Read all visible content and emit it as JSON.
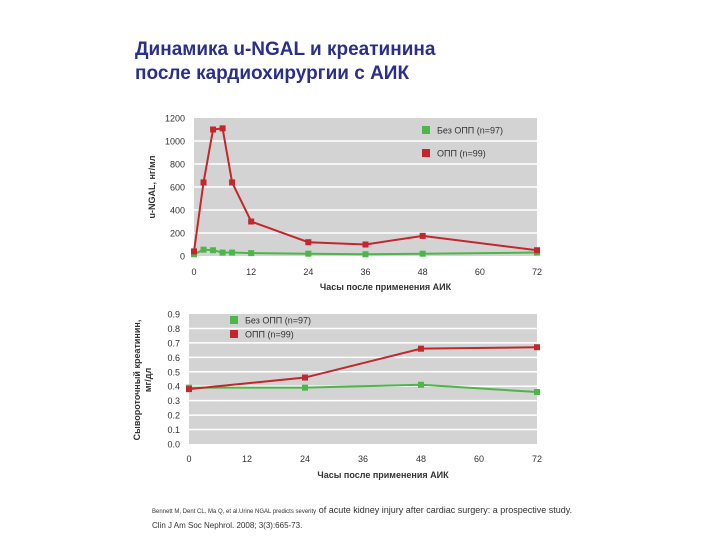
{
  "slide": {
    "title_line1": "Динамика u-NGAL и креатинина",
    "title_line2": "после кардиохирургии с АИК",
    "citation_part1": "Bennett M, Dent CL, Ma Q, et al.Urine NGAL predicts severity",
    "citation_part2": " of acute kidney injury after cardiac surgery: a prospective study.",
    "citation_line2": "Clin J Am Soc Nephrol. 2008; 3(3):665-73."
  },
  "colors": {
    "plot_bg": "#d3d3d3",
    "grid": "#ffffff",
    "no_aki": "#4cb648",
    "aki": "#c1272d",
    "axis_text": "#333333"
  },
  "chart_data": [
    {
      "type": "line",
      "title": "",
      "ylabel": "u-NGAL, нг/мл",
      "xlabel": "Часы после применения АИК",
      "xlim": [
        0,
        72
      ],
      "ylim": [
        0,
        1200
      ],
      "x_ticks": [
        0,
        12,
        24,
        36,
        48,
        60,
        72
      ],
      "y_ticks": [
        0,
        200,
        400,
        600,
        800,
        1000,
        1200
      ],
      "grid": true,
      "legend": "top-right",
      "series": [
        {
          "name": "Без ОПП (n=97)",
          "color_key": "no_aki",
          "x": [
            0,
            2,
            4,
            6,
            8,
            12,
            24,
            36,
            48,
            72
          ],
          "y": [
            15,
            55,
            50,
            30,
            30,
            25,
            20,
            15,
            20,
            30
          ]
        },
        {
          "name": "ОПП (n=99)",
          "color_key": "aki",
          "x": [
            0,
            2,
            4,
            6,
            8,
            12,
            24,
            36,
            48,
            72
          ],
          "y": [
            40,
            640,
            1100,
            1110,
            640,
            300,
            120,
            100,
            175,
            50
          ]
        }
      ]
    },
    {
      "type": "line",
      "title": "",
      "ylabel": "Сывороточный креатинин, мг/дл",
      "xlabel": "Часы после применения АИК",
      "xlim": [
        0,
        72
      ],
      "ylim": [
        0,
        0.9
      ],
      "x_ticks": [
        0,
        12,
        24,
        36,
        48,
        60,
        72
      ],
      "y_ticks": [
        0.0,
        0.1,
        0.2,
        0.3,
        0.4,
        0.5,
        0.6,
        0.7,
        0.8,
        0.9
      ],
      "grid": true,
      "legend": "top-left",
      "series": [
        {
          "name": "Без ОПП (n=97)",
          "color_key": "no_aki",
          "x": [
            0,
            24,
            48,
            72
          ],
          "y": [
            0.39,
            0.39,
            0.41,
            0.36
          ]
        },
        {
          "name": "ОПП (n=99)",
          "color_key": "aki",
          "x": [
            0,
            24,
            48,
            72
          ],
          "y": [
            0.38,
            0.46,
            0.66,
            0.67
          ]
        }
      ]
    }
  ]
}
